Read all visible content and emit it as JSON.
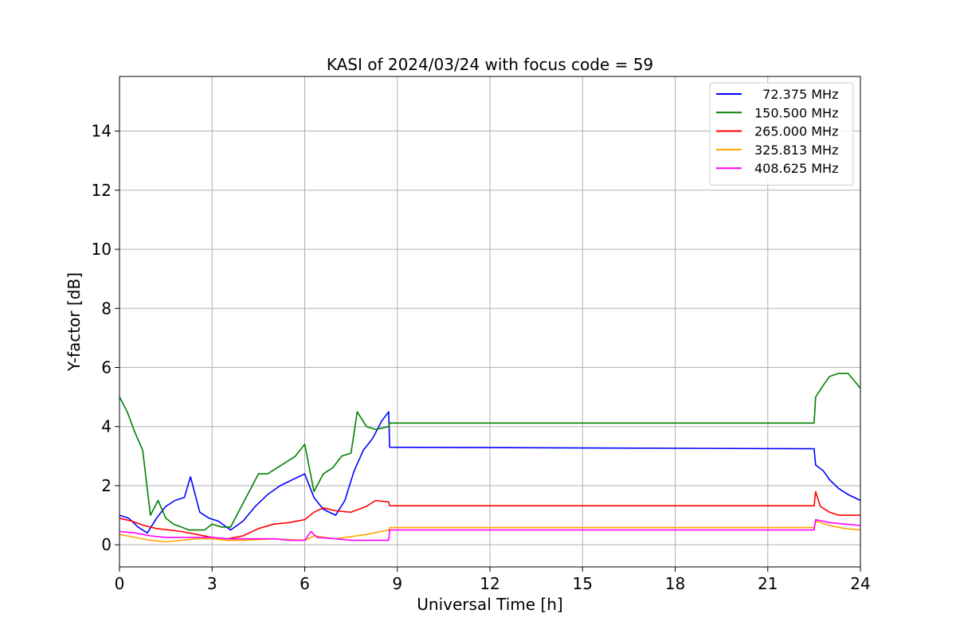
{
  "chart_data": {
    "type": "line",
    "title": "KASI of 2024/03/24 with focus code = 59",
    "xlabel": "Universal Time [h]",
    "ylabel": "Y-factor [dB]",
    "xlim": [
      0,
      24
    ],
    "ylim": [
      -0.75,
      15.85
    ],
    "x_ticks": [
      0,
      3,
      6,
      9,
      12,
      15,
      18,
      21,
      24
    ],
    "y_ticks": [
      0,
      2,
      4,
      6,
      8,
      10,
      12,
      14
    ],
    "grid": true,
    "legend_position": "top-right",
    "series": [
      {
        "name": "  72.375 MHz",
        "color": "#0000ff",
        "x": [
          0,
          0.3,
          0.6,
          0.9,
          1.2,
          1.5,
          1.8,
          2.1,
          2.3,
          2.6,
          2.9,
          3.2,
          3.6,
          4.0,
          4.4,
          4.8,
          5.2,
          5.6,
          6.0,
          6.3,
          6.6,
          7.0,
          7.3,
          7.6,
          7.9,
          8.2,
          8.5,
          8.72,
          8.75,
          22.5,
          22.55,
          22.8,
          23.0,
          23.3,
          23.6,
          24
        ],
        "y": [
          1.0,
          0.9,
          0.6,
          0.4,
          0.9,
          1.3,
          1.5,
          1.6,
          2.3,
          1.1,
          0.9,
          0.8,
          0.5,
          0.8,
          1.3,
          1.7,
          2.0,
          2.2,
          2.4,
          1.6,
          1.2,
          1.0,
          1.5,
          2.5,
          3.2,
          3.6,
          4.2,
          4.5,
          3.3,
          3.25,
          2.7,
          2.5,
          2.2,
          1.9,
          1.7,
          1.5
        ]
      },
      {
        "name": "150.500 MHz",
        "color": "#008000",
        "x": [
          0,
          0.25,
          0.5,
          0.75,
          1.0,
          1.25,
          1.5,
          1.75,
          2.0,
          2.25,
          2.5,
          2.75,
          3.0,
          3.3,
          3.6,
          3.9,
          4.2,
          4.5,
          4.8,
          5.1,
          5.4,
          5.7,
          6.0,
          6.3,
          6.6,
          6.9,
          7.2,
          7.5,
          7.7,
          8.0,
          8.3,
          8.72,
          8.75,
          22.5,
          22.55,
          22.8,
          23.0,
          23.3,
          23.6,
          24
        ],
        "y": [
          5.0,
          4.5,
          3.8,
          3.2,
          1.0,
          1.5,
          0.9,
          0.7,
          0.6,
          0.5,
          0.5,
          0.5,
          0.7,
          0.6,
          0.6,
          1.2,
          1.8,
          2.4,
          2.4,
          2.6,
          2.8,
          3.0,
          3.4,
          1.8,
          2.4,
          2.6,
          3.0,
          3.1,
          4.5,
          4.0,
          3.9,
          4.0,
          4.12,
          4.12,
          5.0,
          5.4,
          5.7,
          5.8,
          5.8,
          5.3
        ]
      },
      {
        "name": "265.000 MHz",
        "color": "#ff0000",
        "x": [
          0,
          0.4,
          0.8,
          1.2,
          1.6,
          2.0,
          2.5,
          3.0,
          3.5,
          4.0,
          4.5,
          5.0,
          5.5,
          6.0,
          6.3,
          6.6,
          7.0,
          7.5,
          8.0,
          8.3,
          8.72,
          8.75,
          22.5,
          22.55,
          22.7,
          23.0,
          23.3,
          23.6,
          24
        ],
        "y": [
          0.9,
          0.8,
          0.65,
          0.55,
          0.5,
          0.45,
          0.35,
          0.25,
          0.2,
          0.3,
          0.55,
          0.7,
          0.75,
          0.85,
          1.1,
          1.25,
          1.15,
          1.1,
          1.3,
          1.5,
          1.45,
          1.32,
          1.32,
          1.8,
          1.3,
          1.1,
          1.0,
          1.0,
          1.0
        ]
      },
      {
        "name": "325.813 MHz",
        "color": "#ffa500",
        "x": [
          0,
          0.5,
          1.0,
          1.5,
          2.0,
          2.5,
          3.0,
          3.5,
          4.0,
          5.0,
          6.0,
          6.3,
          7.0,
          8.0,
          8.72,
          8.75,
          22.5,
          22.55,
          23.0,
          23.5,
          24
        ],
        "y": [
          0.35,
          0.25,
          0.15,
          0.1,
          0.15,
          0.2,
          0.2,
          0.15,
          0.15,
          0.2,
          0.15,
          0.3,
          0.2,
          0.35,
          0.5,
          0.58,
          0.58,
          0.8,
          0.65,
          0.55,
          0.5
        ]
      },
      {
        "name": "408.625 MHz",
        "color": "#ff00ff",
        "x": [
          0,
          0.5,
          1.0,
          1.5,
          2.0,
          2.5,
          3.0,
          3.5,
          4.0,
          4.5,
          5.0,
          5.5,
          6.0,
          6.2,
          6.4,
          7.0,
          7.5,
          8.0,
          8.72,
          8.75,
          22.5,
          22.55,
          23.0,
          23.5,
          24
        ],
        "y": [
          0.45,
          0.4,
          0.3,
          0.25,
          0.25,
          0.25,
          0.25,
          0.2,
          0.2,
          0.2,
          0.2,
          0.15,
          0.15,
          0.45,
          0.25,
          0.2,
          0.15,
          0.15,
          0.15,
          0.5,
          0.5,
          0.85,
          0.75,
          0.7,
          0.65
        ]
      }
    ]
  }
}
